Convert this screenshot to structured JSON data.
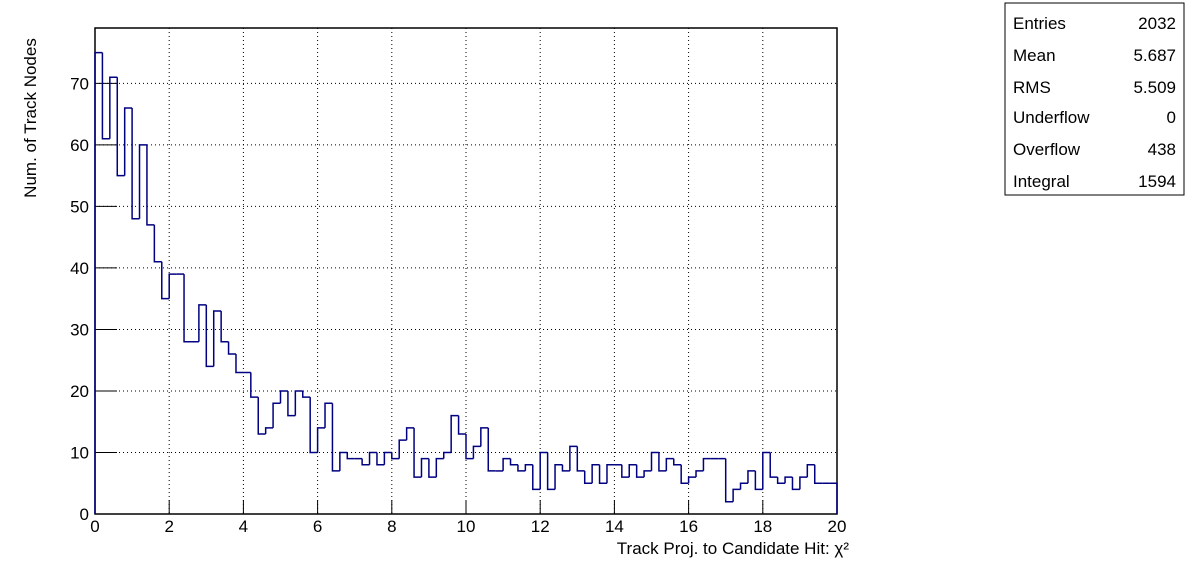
{
  "chart_data": {
    "type": "histogram",
    "x_label": "Track Proj. to Candidate Hit: χ²",
    "y_label": "Num. of Track Nodes",
    "color": "#000080",
    "bins": [
      0,
      0.2,
      0.4,
      0.6,
      0.8,
      1,
      1.2,
      1.4,
      1.6,
      1.8,
      2,
      2.2,
      2.4,
      2.6,
      2.8,
      3,
      3.2,
      3.4,
      3.6,
      3.8,
      4,
      4.2,
      4.4,
      4.6,
      4.8,
      5,
      5.2,
      5.4,
      5.6,
      5.8,
      6,
      6.2,
      6.4,
      6.6,
      6.8,
      7,
      7.2,
      7.4,
      7.6,
      7.8,
      8,
      8.2,
      8.4,
      8.6,
      8.8,
      9,
      9.2,
      9.4,
      9.6,
      9.8,
      10,
      10.2,
      10.4,
      10.6,
      10.8,
      11,
      11.2,
      11.4,
      11.6,
      11.8,
      12,
      12.2,
      12.4,
      12.6,
      12.8,
      13,
      13.2,
      13.4,
      13.6,
      13.8,
      14,
      14.2,
      14.4,
      14.6,
      14.8,
      15,
      15.2,
      15.4,
      15.6,
      15.8,
      16,
      16.2,
      16.4,
      16.6,
      16.8,
      17,
      17.2,
      17.4,
      17.6,
      17.8,
      18,
      18.2,
      18.4,
      18.6,
      18.8,
      19,
      19.2,
      19.4,
      19.6,
      19.8,
      20
    ],
    "values": [
      75,
      61,
      71,
      55,
      66,
      48,
      60,
      47,
      41,
      35,
      39,
      39,
      28,
      28,
      34,
      24,
      33,
      28,
      26,
      23,
      23,
      19,
      13,
      14,
      18,
      20,
      16,
      20,
      19,
      10,
      14,
      18,
      7,
      10,
      9,
      9,
      8,
      10,
      8,
      10,
      9,
      12,
      14,
      6,
      9,
      6,
      9,
      10,
      16,
      13,
      9,
      11,
      14,
      7,
      7,
      9,
      8,
      7,
      8,
      4,
      10,
      4,
      8,
      7,
      11,
      7,
      5,
      8,
      5,
      8,
      8,
      6,
      8,
      6,
      7,
      10,
      7,
      9,
      8,
      5,
      6,
      7,
      9,
      9,
      9,
      2,
      4,
      5,
      7,
      4,
      10,
      6,
      5,
      6,
      4,
      6,
      8,
      5,
      5,
      5
    ],
    "xlim": [
      0,
      20
    ],
    "xticks": [
      0,
      2,
      4,
      6,
      8,
      10,
      12,
      14,
      16,
      18,
      20
    ],
    "ylim": [
      0,
      79
    ],
    "yticks": [
      0,
      10,
      20,
      30,
      40,
      50,
      60,
      70
    ],
    "grid": true,
    "stats": [
      {
        "label": "Entries",
        "value": 2032
      },
      {
        "label": "Mean",
        "value": 5.687
      },
      {
        "label": "RMS",
        "value": 5.509
      },
      {
        "label": "Underflow",
        "value": 0
      },
      {
        "label": "Overflow",
        "value": 438
      },
      {
        "label": "Integral",
        "value": 1594
      }
    ]
  }
}
